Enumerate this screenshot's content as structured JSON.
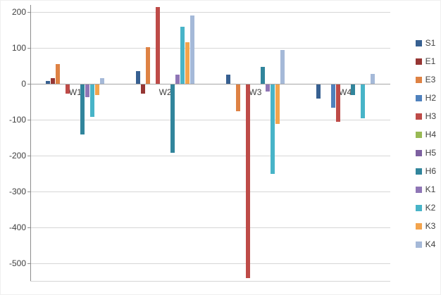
{
  "chart_data": {
    "type": "bar",
    "title": "",
    "xlabel": "",
    "ylabel": "",
    "categories": [
      "W1",
      "W2",
      "W3",
      "W4"
    ],
    "series": [
      {
        "name": "S1",
        "color": "#376091",
        "values": [
          8,
          35,
          25,
          -40
        ]
      },
      {
        "name": "E1",
        "color": "#963634",
        "values": [
          15,
          -25,
          0,
          0
        ]
      },
      {
        "name": "E3",
        "color": "#DE8244",
        "values": [
          55,
          103,
          -75,
          0
        ]
      },
      {
        "name": "H2",
        "color": "#4F81BD",
        "values": [
          0,
          0,
          0,
          -65
        ]
      },
      {
        "name": "H3",
        "color": "#BE4B48",
        "values": [
          -25,
          215,
          -540,
          -105
        ]
      },
      {
        "name": "H4",
        "color": "#98B954",
        "values": [
          0,
          0,
          0,
          0
        ]
      },
      {
        "name": "H5",
        "color": "#7D60A0",
        "values": [
          0,
          0,
          0,
          0
        ]
      },
      {
        "name": "H6",
        "color": "#31859C",
        "values": [
          -140,
          -190,
          48,
          -30
        ]
      },
      {
        "name": "K1",
        "color": "#8F76B6",
        "values": [
          -35,
          25,
          -20,
          0
        ]
      },
      {
        "name": "K2",
        "color": "#48B4C8",
        "values": [
          -90,
          160,
          -250,
          -95
        ]
      },
      {
        "name": "K3",
        "color": "#F3A44D",
        "values": [
          -30,
          115,
          -110,
          0
        ]
      },
      {
        "name": "K4",
        "color": "#A5B9D8",
        "values": [
          15,
          190,
          95,
          28
        ]
      }
    ],
    "ylim": [
      -550,
      220
    ],
    "yticks": [
      200,
      100,
      0,
      -100,
      -200,
      -300,
      -400,
      -500
    ],
    "grid": true,
    "legend_position": "right",
    "gridline_color": "#d6d6d6",
    "axis_color": "#8c8c8c",
    "label_color": "#3f3f3f"
  }
}
